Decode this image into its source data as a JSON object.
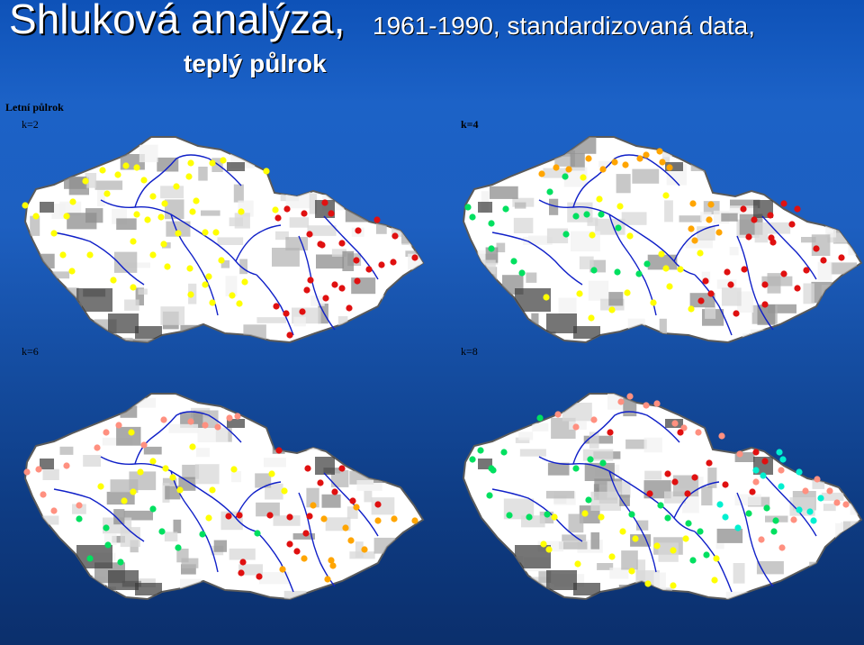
{
  "title": {
    "main": "Shluková analýza,",
    "sub": "1961-1990, standardizovaná data,",
    "line2": "teplý půlrok"
  },
  "panel_header": "Letní půlrok",
  "panels": [
    {
      "label": "k=2",
      "stations": {
        "yellow": [
          [
            114,
            189
          ],
          [
            131,
            194
          ],
          [
            140,
            184
          ],
          [
            152,
            186
          ],
          [
            160,
            200
          ],
          [
            170,
            218
          ],
          [
            183,
            226
          ],
          [
            179,
            241
          ],
          [
            164,
            244
          ],
          [
            152,
            238
          ],
          [
            119,
            215
          ],
          [
            95,
            201
          ],
          [
            81,
            224
          ],
          [
            74,
            240
          ],
          [
            40,
            240
          ],
          [
            28,
            228
          ],
          [
            60,
            259
          ],
          [
            70,
            283
          ],
          [
            100,
            283
          ],
          [
            80,
            301
          ],
          [
            126,
            311
          ],
          [
            148,
            319
          ],
          [
            148,
            268
          ],
          [
            170,
            283
          ],
          [
            186,
            296
          ],
          [
            211,
            298
          ],
          [
            182,
            271
          ],
          [
            198,
            259
          ],
          [
            228,
            258
          ],
          [
            240,
            258
          ],
          [
            268,
            235
          ],
          [
            218,
            223
          ],
          [
            196,
            207
          ],
          [
            210,
            196
          ],
          [
            212,
            181
          ],
          [
            236,
            181
          ],
          [
            248,
            178
          ],
          [
            296,
            190
          ],
          [
            306,
            233
          ],
          [
            214,
            235
          ],
          [
            246,
            289
          ],
          [
            232,
            307
          ],
          [
            228,
            316
          ],
          [
            212,
            327
          ],
          [
            236,
            336
          ],
          [
            258,
            328
          ],
          [
            272,
            313
          ],
          [
            266,
            337
          ]
        ],
        "red": [
          [
            319,
            232
          ],
          [
            309,
            242
          ],
          [
            338,
            237
          ],
          [
            344,
            260
          ],
          [
            361,
            225
          ],
          [
            368,
            237
          ],
          [
            356,
            271
          ],
          [
            398,
            256
          ],
          [
            419,
            244
          ],
          [
            439,
            262
          ],
          [
            461,
            286
          ],
          [
            380,
            270
          ],
          [
            396,
            289
          ],
          [
            345,
            311
          ],
          [
            341,
            322
          ],
          [
            362,
            331
          ],
          [
            380,
            320
          ],
          [
            397,
            312
          ],
          [
            410,
            299
          ],
          [
            424,
            294
          ],
          [
            437,
            291
          ],
          [
            336,
            346
          ],
          [
            307,
            340
          ],
          [
            318,
            348
          ],
          [
            372,
            316
          ],
          [
            388,
            342
          ],
          [
            322,
            372
          ],
          [
            358,
            272
          ]
        ]
      }
    },
    {
      "label": "k=4",
      "stations": {
        "orange": [
          [
            602,
            193
          ],
          [
            618,
            186
          ],
          [
            632,
            188
          ],
          [
            654,
            176
          ],
          [
            670,
            188
          ],
          [
            683,
            180
          ],
          [
            695,
            183
          ],
          [
            711,
            176
          ],
          [
            718,
            172
          ],
          [
            733,
            168
          ],
          [
            744,
            186
          ],
          [
            736,
            180
          ],
          [
            770,
            226
          ],
          [
            788,
            244
          ],
          [
            790,
            227
          ],
          [
            768,
            254
          ],
          [
            799,
            258
          ],
          [
            772,
            267
          ]
        ],
        "green": [
          [
            525,
            241
          ],
          [
            520,
            230
          ],
          [
            546,
            248
          ],
          [
            562,
            232
          ],
          [
            546,
            276
          ],
          [
            571,
            290
          ],
          [
            580,
            303
          ],
          [
            628,
            196
          ],
          [
            611,
            213
          ],
          [
            640,
            240
          ],
          [
            652,
            238
          ],
          [
            668,
            238
          ],
          [
            687,
            253
          ],
          [
            629,
            260
          ],
          [
            686,
            302
          ],
          [
            660,
            300
          ],
          [
            710,
            304
          ],
          [
            719,
            293
          ]
        ],
        "yellow": [
          [
            658,
            261
          ],
          [
            700,
            262
          ],
          [
            735,
            282
          ],
          [
            740,
            298
          ],
          [
            756,
            299
          ],
          [
            697,
            325
          ],
          [
            744,
            318
          ],
          [
            726,
            336
          ],
          [
            768,
            343
          ],
          [
            607,
            330
          ],
          [
            657,
            353
          ],
          [
            680,
            344
          ],
          [
            644,
            326
          ],
          [
            689,
            229
          ],
          [
            648,
            197
          ],
          [
            666,
            221
          ],
          [
            740,
            217
          ],
          [
            778,
            281
          ]
        ],
        "red": [
          [
            826,
            232
          ],
          [
            838,
            244
          ],
          [
            856,
            239
          ],
          [
            871,
            226
          ],
          [
            886,
            232
          ],
          [
            880,
            249
          ],
          [
            857,
            264
          ],
          [
            832,
            263
          ],
          [
            907,
            276
          ],
          [
            935,
            286
          ],
          [
            915,
            289
          ],
          [
            896,
            300
          ],
          [
            886,
            320
          ],
          [
            871,
            304
          ],
          [
            850,
            316
          ],
          [
            827,
            299
          ],
          [
            808,
            302
          ],
          [
            812,
            316
          ],
          [
            784,
            312
          ],
          [
            790,
            326
          ],
          [
            779,
            334
          ],
          [
            818,
            348
          ],
          [
            850,
            338
          ],
          [
            859,
            269
          ]
        ]
      }
    },
    {
      "label": "k=6",
      "stations": {
        "salmon": [
          [
            132,
            472
          ],
          [
            212,
            468
          ],
          [
            228,
            472
          ],
          [
            242,
            474
          ],
          [
            255,
            464
          ],
          [
            264,
            462
          ],
          [
            182,
            466
          ],
          [
            160,
            494
          ],
          [
            118,
            480
          ],
          [
            108,
            497
          ],
          [
            74,
            517
          ],
          [
            43,
            521
          ],
          [
            30,
            524
          ],
          [
            48,
            549
          ],
          [
            60,
            567
          ],
          [
            88,
            561
          ]
        ],
        "green": [
          [
            88,
            576
          ],
          [
            118,
            586
          ],
          [
            120,
            605
          ],
          [
            134,
            624
          ],
          [
            100,
            620
          ],
          [
            170,
            565
          ],
          [
            180,
            590
          ],
          [
            198,
            608
          ],
          [
            225,
            593
          ],
          [
            286,
            592
          ]
        ],
        "yellow": [
          [
            146,
            480
          ],
          [
            148,
            546
          ],
          [
            138,
            556
          ],
          [
            156,
            524
          ],
          [
            170,
            512
          ],
          [
            184,
            520
          ],
          [
            192,
            530
          ],
          [
            200,
            544
          ],
          [
            214,
            496
          ],
          [
            232,
            575
          ],
          [
            236,
            544
          ],
          [
            260,
            521
          ],
          [
            302,
            526
          ],
          [
            316,
            545
          ],
          [
            112,
            540
          ]
        ],
        "orange": [
          [
            348,
            561
          ],
          [
            360,
            576
          ],
          [
            384,
            586
          ],
          [
            396,
            563
          ],
          [
            420,
            578
          ],
          [
            438,
            576
          ],
          [
            461,
            578
          ],
          [
            405,
            610
          ],
          [
            390,
            600
          ],
          [
            368,
            622
          ],
          [
            338,
            620
          ],
          [
            364,
            643
          ],
          [
            370,
            628
          ],
          [
            314,
            632
          ]
        ],
        "red": [
          [
            310,
            500
          ],
          [
            342,
            520
          ],
          [
            356,
            536
          ],
          [
            380,
            520
          ],
          [
            372,
            546
          ],
          [
            392,
            556
          ],
          [
            420,
            560
          ],
          [
            300,
            572
          ],
          [
            266,
            572
          ],
          [
            254,
            573
          ],
          [
            340,
            592
          ],
          [
            322,
            604
          ],
          [
            330,
            612
          ],
          [
            270,
            624
          ],
          [
            268,
            636
          ],
          [
            288,
            640
          ],
          [
            322,
            574
          ],
          [
            344,
            573
          ]
        ]
      }
    },
    {
      "label": "k=8",
      "stations": {
        "green": [
          [
            600,
            464
          ],
          [
            534,
            500
          ],
          [
            525,
            510
          ],
          [
            546,
            520
          ],
          [
            560,
            502
          ],
          [
            566,
            572
          ],
          [
            588,
            574
          ],
          [
            544,
            550
          ],
          [
            548,
            522
          ],
          [
            608,
            571
          ],
          [
            640,
            520
          ],
          [
            656,
            510
          ],
          [
            670,
            514
          ],
          [
            654,
            555
          ],
          [
            702,
            571
          ],
          [
            734,
            561
          ],
          [
            742,
            575
          ],
          [
            765,
            581
          ],
          [
            778,
            590
          ],
          [
            770,
            622
          ],
          [
            785,
            616
          ],
          [
            832,
            570
          ],
          [
            852,
            564
          ],
          [
            862,
            578
          ],
          [
            860,
            590
          ]
        ],
        "salmon": [
          [
            620,
            460
          ],
          [
            640,
            474
          ],
          [
            660,
            466
          ],
          [
            690,
            446
          ],
          [
            700,
            440
          ],
          [
            718,
            450
          ],
          [
            730,
            448
          ],
          [
            750,
            470
          ],
          [
            760,
            475
          ],
          [
            776,
            480
          ],
          [
            802,
            484
          ],
          [
            822,
            504
          ],
          [
            840,
            535
          ],
          [
            868,
            522
          ],
          [
            895,
            545
          ],
          [
            908,
            532
          ],
          [
            922,
            545
          ],
          [
            930,
            558
          ],
          [
            940,
            560
          ],
          [
            882,
            577
          ],
          [
            869,
            608
          ],
          [
            846,
            599
          ]
        ],
        "yellow": [
          [
            616,
            574
          ],
          [
            604,
            604
          ],
          [
            610,
            610
          ],
          [
            650,
            570
          ],
          [
            668,
            574
          ],
          [
            692,
            590
          ],
          [
            706,
            598
          ],
          [
            730,
            606
          ],
          [
            680,
            618
          ],
          [
            702,
            634
          ],
          [
            720,
            648
          ],
          [
            642,
            626
          ],
          [
            762,
            598
          ],
          [
            748,
            611
          ],
          [
            796,
            620
          ],
          [
            794,
            644
          ],
          [
            748,
            650
          ]
        ],
        "cyan": [
          [
            800,
            560
          ],
          [
            806,
            574
          ],
          [
            820,
            586
          ],
          [
            888,
            566
          ],
          [
            900,
            568
          ],
          [
            912,
            553
          ],
          [
            868,
            540
          ],
          [
            888,
            524
          ],
          [
            848,
            528
          ],
          [
            840,
            522
          ],
          [
            866,
            502
          ],
          [
            870,
            510
          ],
          [
            904,
            578
          ]
        ],
        "red": [
          [
            678,
            480
          ],
          [
            756,
            480
          ],
          [
            742,
            526
          ],
          [
            750,
            535
          ],
          [
            764,
            548
          ],
          [
            722,
            548
          ],
          [
            772,
            530
          ],
          [
            840,
            502
          ],
          [
            850,
            512
          ],
          [
            836,
            546
          ],
          [
            806,
            538
          ],
          [
            788,
            514
          ]
        ]
      }
    }
  ],
  "colors": {
    "yellow": "#ffff00",
    "red": "#e01010",
    "orange": "#ffa500",
    "green": "#00e060",
    "salmon": "#ff9080",
    "cyan": "#00f0d0"
  }
}
